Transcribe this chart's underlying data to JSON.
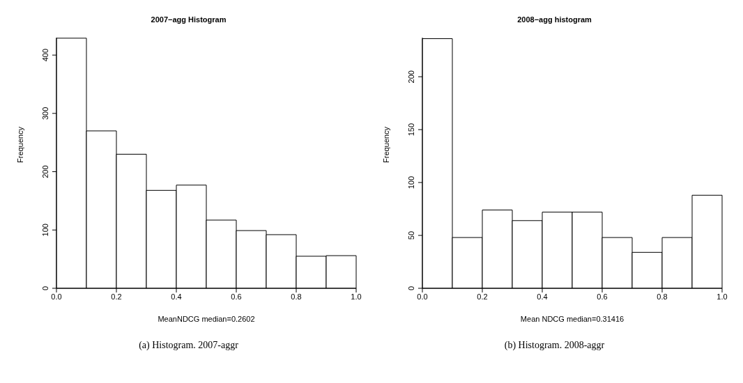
{
  "chart_data": [
    {
      "type": "histogram",
      "title": "2007−agg Histogram",
      "xlabel": "MeanNDCG median=0.2602",
      "ylabel": "Frequency",
      "bins": [
        0,
        0.1,
        0.2,
        0.3,
        0.4,
        0.5,
        0.6,
        0.7,
        0.8,
        0.9,
        1.0
      ],
      "values": [
        429,
        270,
        230,
        168,
        177,
        117,
        99,
        92,
        55,
        56
      ],
      "color": "#ffffff",
      "xlim": [
        0,
        1
      ],
      "xticks": [
        {
          "value": 0,
          "label": "0.0"
        },
        {
          "value": 0.2,
          "label": "0.2"
        },
        {
          "value": 0.4,
          "label": "0.4"
        },
        {
          "value": 0.6,
          "label": "0.6"
        },
        {
          "value": 0.8,
          "label": "0.8"
        },
        {
          "value": 1,
          "label": "1.0"
        }
      ],
      "ylim": [
        0,
        430
      ],
      "yticks": [
        0,
        100,
        200,
        300,
        400
      ],
      "annotations": [
        "(a) Histogram. 2007-aggr"
      ]
    },
    {
      "type": "histogram",
      "title": "2008−agg histogram",
      "xlabel": "Mean NDCG median=0.31416",
      "ylabel": "Frequency",
      "bins": [
        0,
        0.1,
        0.2,
        0.3,
        0.4,
        0.5,
        0.6,
        0.7,
        0.8,
        0.9,
        1.0
      ],
      "values": [
        236,
        48,
        74,
        64,
        72,
        72,
        48,
        34,
        48,
        88
      ],
      "color": "#ffffff",
      "xlim": [
        0,
        1
      ],
      "xticks": [
        {
          "value": 0,
          "label": "0.0"
        },
        {
          "value": 0.2,
          "label": "0.2"
        },
        {
          "value": 0.4,
          "label": "0.4"
        },
        {
          "value": 0.6,
          "label": "0.6"
        },
        {
          "value": 0.8,
          "label": "0.8"
        },
        {
          "value": 1,
          "label": "1.0"
        }
      ],
      "ylim": [
        0,
        237
      ],
      "yticks": [
        0,
        50,
        100,
        150,
        200
      ],
      "annotations": [
        "(b) Histogram. 2008-aggr"
      ]
    }
  ]
}
